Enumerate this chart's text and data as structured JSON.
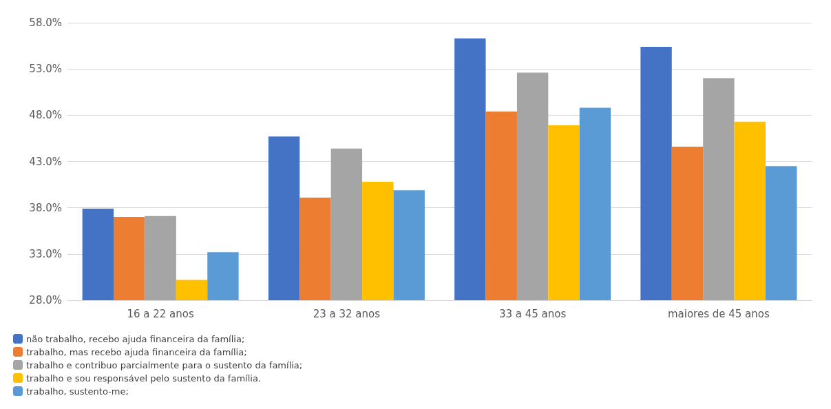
{
  "chart_data": {
    "type": "bar",
    "categories": [
      "16 a 22 anos",
      "23 a 32 anos",
      "33 a 45 anos",
      "maiores de 45 anos"
    ],
    "series": [
      {
        "name": "não trabalho, recebo ajuda financeira da família;",
        "color": "#4472c4",
        "values": [
          37.9,
          45.7,
          56.3,
          55.4
        ]
      },
      {
        "name": "trabalho, mas recebo ajuda financeira da família;",
        "color": "#ed7d31",
        "values": [
          37.0,
          39.1,
          48.4,
          44.6
        ]
      },
      {
        "name": "trabalho e contribuo parcialmente para o sustento da família;",
        "color": "#a5a5a5",
        "values": [
          37.1,
          44.4,
          52.6,
          52.0
        ]
      },
      {
        "name": "trabalho e sou responsável pelo sustento da família.",
        "color": "#ffc000",
        "values": [
          30.2,
          40.8,
          46.9,
          47.3
        ]
      },
      {
        "name": "trabalho, sustento-me;",
        "color": "#5b9bd5",
        "values": [
          33.2,
          39.9,
          48.8,
          42.5
        ]
      }
    ],
    "ylim": [
      28,
      58
    ],
    "yticks": [
      {
        "value": 28,
        "label": "28.0%"
      },
      {
        "value": 33,
        "label": "33.0%"
      },
      {
        "value": 38,
        "label": "38.0%"
      },
      {
        "value": 43,
        "label": "43.0%"
      },
      {
        "value": 48,
        "label": "48.0%"
      },
      {
        "value": 53,
        "label": "53.0%"
      },
      {
        "value": 58,
        "label": "58.0%"
      }
    ],
    "grid": "y",
    "legend": "bottom left"
  }
}
